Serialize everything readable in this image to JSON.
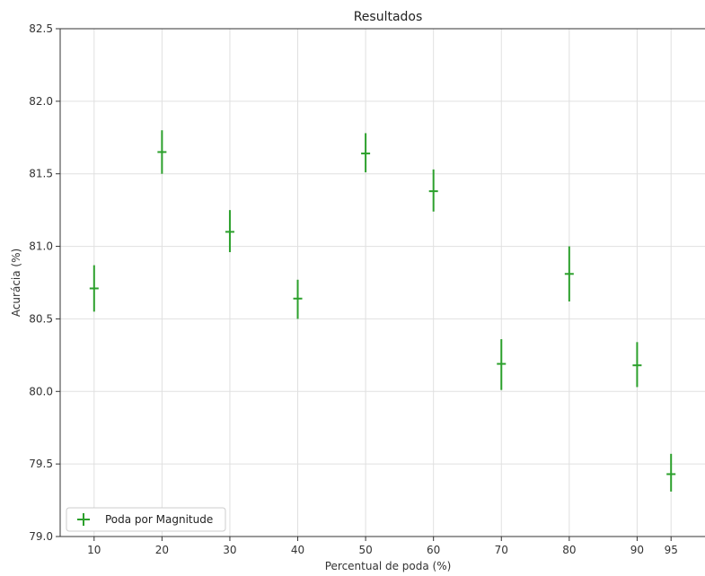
{
  "chart_data": {
    "type": "scatter",
    "title": "Resultados",
    "xlabel": "Percentual de poda (%)",
    "ylabel": "Acurácia (%)",
    "xlim": [
      5,
      100
    ],
    "ylim": [
      79.0,
      82.5
    ],
    "x_ticks": [
      10,
      20,
      30,
      40,
      50,
      60,
      70,
      80,
      90,
      95
    ],
    "y_ticks": [
      79.0,
      79.5,
      80.0,
      80.5,
      81.0,
      81.5,
      82.0,
      82.5
    ],
    "grid": true,
    "legend_position": "lower-left",
    "series": [
      {
        "name": "Poda por Magnitude",
        "color": "#2ca02c",
        "marker": "plus",
        "x": [
          10,
          20,
          30,
          40,
          50,
          60,
          70,
          80,
          90,
          95
        ],
        "y": [
          80.71,
          81.65,
          81.1,
          80.64,
          81.64,
          81.38,
          80.19,
          80.81,
          80.18,
          79.43
        ],
        "y_err_low": [
          80.55,
          81.5,
          80.96,
          80.5,
          81.51,
          81.24,
          80.01,
          80.62,
          80.03,
          79.31
        ],
        "y_err_high": [
          80.87,
          81.8,
          81.25,
          80.77,
          81.78,
          81.53,
          80.36,
          81.0,
          80.34,
          79.57
        ]
      }
    ]
  }
}
